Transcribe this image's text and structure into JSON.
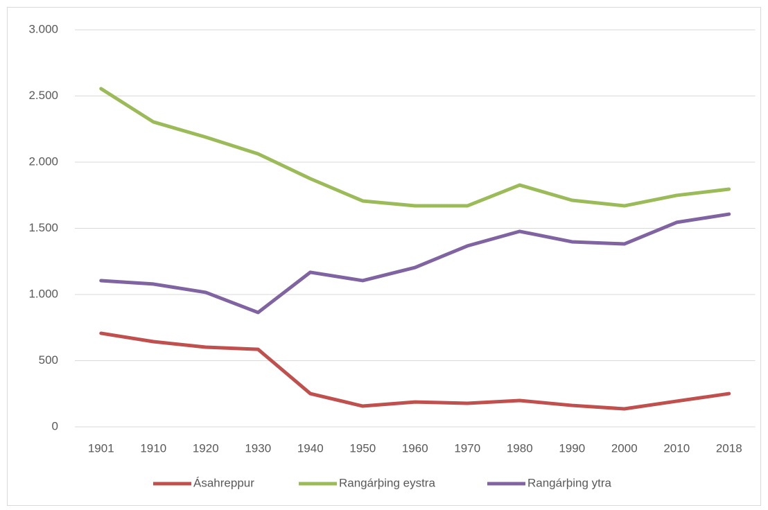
{
  "chart_data": {
    "type": "line",
    "categories": [
      "1901",
      "1910",
      "1920",
      "1930",
      "1940",
      "1950",
      "1960",
      "1970",
      "1980",
      "1990",
      "2000",
      "2010",
      "2018"
    ],
    "series": [
      {
        "name": "Ásahreppur",
        "color": "#c0504d",
        "values": [
          707,
          644,
          602,
          586,
          251,
          157,
          188,
          178,
          199,
          162,
          136,
          194,
          251
        ]
      },
      {
        "name": "Rangárþing eystra",
        "color": "#9bbb59",
        "values": [
          2555,
          2304,
          2189,
          2063,
          1875,
          1707,
          1670,
          1670,
          1827,
          1712,
          1670,
          1749,
          1796
        ]
      },
      {
        "name": "Rangárþing ytra",
        "color": "#8064a2",
        "values": [
          1105,
          1079,
          1016,
          864,
          1168,
          1105,
          1204,
          1367,
          1477,
          1398,
          1382,
          1545,
          1607
        ]
      }
    ],
    "ylim": [
      0,
      3000
    ],
    "yticks": [
      0,
      500,
      {
        "value": 1000,
        "label": "1.000"
      },
      {
        "value": 1500,
        "label": "1.500"
      },
      {
        "value": 2000,
        "label": "2.000"
      },
      {
        "value": 2500,
        "label": "2.500"
      },
      {
        "value": 3000,
        "label": "3.000"
      }
    ],
    "grid": true,
    "legend": "bottom"
  }
}
